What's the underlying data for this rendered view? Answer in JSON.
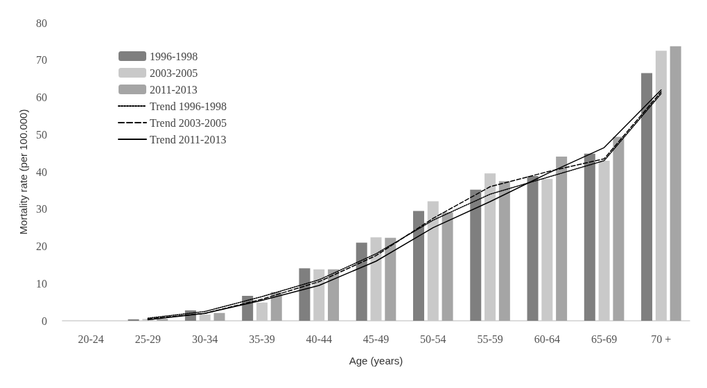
{
  "chart_data": {
    "type": "bar",
    "xlabel": "Age (years)",
    "ylabel": "Mortality rate (per 100.000)",
    "categories": [
      "20-24",
      "25-29",
      "30-34",
      "35-39",
      "40-44",
      "45-49",
      "50-54",
      "55-59",
      "60-64",
      "65-69",
      "70 +"
    ],
    "ylim": [
      0,
      80
    ],
    "yticks": [
      0,
      10,
      20,
      30,
      40,
      50,
      60,
      70,
      80
    ],
    "grid": false,
    "legend": "top left",
    "series": [
      {
        "name": "1996-1998",
        "color": "#7f7f7f",
        "values": [
          0,
          0.4,
          2.8,
          6.7,
          14.1,
          21,
          29.5,
          35.2,
          38.9,
          44.9,
          66.5
        ]
      },
      {
        "name": "2003-2005",
        "color": "#c9c9c9",
        "values": [
          0,
          0.5,
          1.7,
          4.9,
          13.8,
          22.4,
          32.1,
          39.6,
          38.1,
          43,
          72.5
        ]
      },
      {
        "name": "2011-2013",
        "color": "#a5a5a5",
        "values": [
          0,
          0.5,
          2.1,
          7.7,
          13.8,
          22.3,
          29.1,
          37.5,
          44.1,
          49.4,
          73.7
        ]
      },
      {
        "name": "Trend 1996-1998",
        "type": "line",
        "line_style": "dotted",
        "marker": "none",
        "color": "#000000",
        "values": [
          null,
          0.7,
          2.5,
          6.5,
          11,
          18,
          27,
          34,
          38.5,
          43,
          61
        ]
      },
      {
        "name": "Trend 2003-2005",
        "type": "line",
        "line_style": "dashed",
        "marker": "none",
        "color": "#000000",
        "values": [
          null,
          0.5,
          2,
          5.8,
          10.5,
          17.5,
          27.5,
          36,
          40,
          43.5,
          61.5
        ]
      },
      {
        "name": "Trend 2011-2013",
        "type": "line",
        "line_style": "solid",
        "marker": "none",
        "color": "#000000",
        "values": [
          null,
          0.3,
          2,
          5.5,
          9.5,
          16,
          25,
          32,
          39.5,
          46.5,
          62
        ]
      }
    ]
  }
}
